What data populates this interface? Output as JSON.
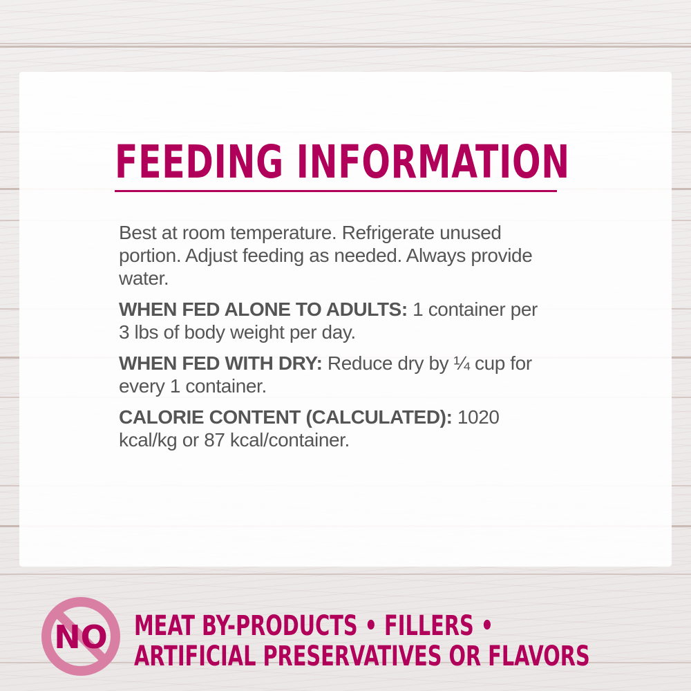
{
  "title": "FEEDING INFORMATION",
  "intro": "Best at room temperature. Refrigerate unused portion. Adjust feeding as needed. Always provide water.",
  "sections": [
    {
      "label": "WHEN FED ALONE TO ADULTS:",
      "text": " 1 container per 3 lbs of body weight per day."
    },
    {
      "label": "WHEN FED WITH DRY:",
      "text": " Reduce dry by ¼ cup for every 1 container."
    },
    {
      "label": "CALORIE CONTENT (CALCULATED):",
      "text": " 1020 kcal/kg or 87 kcal/container."
    }
  ],
  "badge": {
    "text": "NO",
    "icon": "prohibited-icon",
    "color": "#d97fa3"
  },
  "claims": {
    "line1": "MEAT BY-PRODUCTS • FILLERS •",
    "line2": "ARTIFICIAL PRESERVATIVES OR FLAVORS"
  },
  "colors": {
    "accent": "#b0005a",
    "body_text": "#555555"
  }
}
